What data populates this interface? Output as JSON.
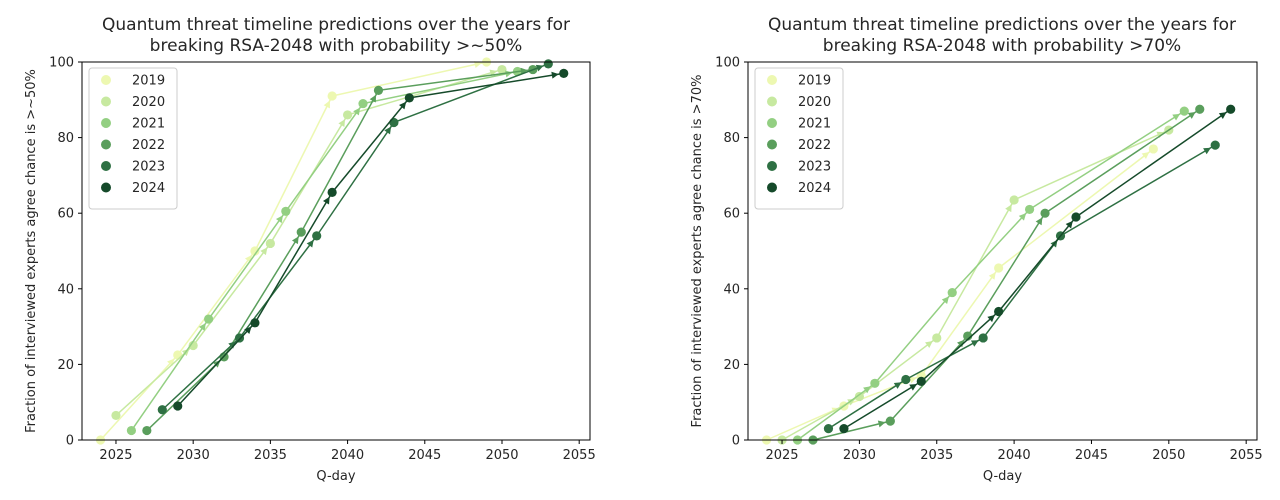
{
  "chart_data": [
    {
      "type": "line",
      "title": [
        "Quantum threat timeline predictions over the years for",
        "breaking RSA-2048 with probability >~50%"
      ],
      "xlabel": "Q-day",
      "ylabel": "Fraction of interviewed experts agree chance is >~50%",
      "xlim": [
        2022.8,
        2055.7
      ],
      "ylim": [
        0,
        100
      ],
      "xticks": [
        2025,
        2030,
        2035,
        2040,
        2045,
        2050,
        2055
      ],
      "yticks": [
        0,
        20,
        40,
        60,
        80,
        100
      ],
      "legend_position": "upper-left",
      "series": [
        {
          "name": "2019",
          "color": "#edf8b1",
          "points": [
            [
              2024,
              0
            ],
            [
              2029,
              22.5
            ],
            [
              2034,
              50
            ],
            [
              2039,
              91
            ],
            [
              2049,
              100
            ]
          ]
        },
        {
          "name": "2020",
          "color": "#c7e9a0",
          "points": [
            [
              2025,
              6.5
            ],
            [
              2030,
              25
            ],
            [
              2035,
              52
            ],
            [
              2040,
              86
            ],
            [
              2050,
              98
            ]
          ]
        },
        {
          "name": "2021",
          "color": "#93cf82",
          "points": [
            [
              2026,
              2.5
            ],
            [
              2031,
              32
            ],
            [
              2036,
              60.5
            ],
            [
              2041,
              89
            ],
            [
              2051,
              97.5
            ]
          ]
        },
        {
          "name": "2022",
          "color": "#5a9e5c",
          "points": [
            [
              2027,
              2.5
            ],
            [
              2032,
              22
            ],
            [
              2037,
              55
            ],
            [
              2042,
              92.5
            ],
            [
              2052,
              98
            ]
          ]
        },
        {
          "name": "2023",
          "color": "#2e7043",
          "points": [
            [
              2028,
              8
            ],
            [
              2033,
              27
            ],
            [
              2038,
              54
            ],
            [
              2043,
              84
            ],
            [
              2053,
              99.5
            ]
          ]
        },
        {
          "name": "2024",
          "color": "#154a2a",
          "points": [
            [
              2029,
              9
            ],
            [
              2034,
              31
            ],
            [
              2039,
              65.5
            ],
            [
              2044,
              90.5
            ],
            [
              2054,
              97
            ]
          ]
        }
      ]
    },
    {
      "type": "line",
      "title": [
        "Quantum threat timeline predictions over the years for",
        "breaking RSA-2048 with probability >70%"
      ],
      "xlabel": "Q-day",
      "ylabel": "Fraction of interviewed experts agree chance is >70%",
      "xlim": [
        2022.8,
        2055.7
      ],
      "ylim": [
        0,
        100
      ],
      "xticks": [
        2025,
        2030,
        2035,
        2040,
        2045,
        2050,
        2055
      ],
      "yticks": [
        0,
        20,
        40,
        60,
        80,
        100
      ],
      "legend_position": "upper-left",
      "series": [
        {
          "name": "2019",
          "color": "#edf8b1",
          "points": [
            [
              2024,
              0
            ],
            [
              2029,
              9
            ],
            [
              2034,
              17
            ],
            [
              2039,
              45.5
            ],
            [
              2049,
              77
            ]
          ]
        },
        {
          "name": "2020",
          "color": "#c7e9a0",
          "points": [
            [
              2025,
              0
            ],
            [
              2030,
              11.5
            ],
            [
              2035,
              27
            ],
            [
              2040,
              63.5
            ],
            [
              2050,
              82
            ]
          ]
        },
        {
          "name": "2021",
          "color": "#93cf82",
          "points": [
            [
              2026,
              0
            ],
            [
              2031,
              15
            ],
            [
              2036,
              39
            ],
            [
              2041,
              61
            ],
            [
              2051,
              87
            ]
          ]
        },
        {
          "name": "2022",
          "color": "#5a9e5c",
          "points": [
            [
              2027,
              0
            ],
            [
              2032,
              5
            ],
            [
              2037,
              27.5
            ],
            [
              2042,
              60
            ],
            [
              2052,
              87.5
            ]
          ]
        },
        {
          "name": "2023",
          "color": "#2e7043",
          "points": [
            [
              2028,
              3
            ],
            [
              2033,
              16
            ],
            [
              2038,
              27
            ],
            [
              2043,
              54
            ],
            [
              2053,
              78
            ]
          ]
        },
        {
          "name": "2024",
          "color": "#154a2a",
          "points": [
            [
              2029,
              3
            ],
            [
              2034,
              15.5
            ],
            [
              2039,
              34
            ],
            [
              2044,
              59
            ],
            [
              2054,
              87.5
            ]
          ]
        }
      ]
    }
  ]
}
